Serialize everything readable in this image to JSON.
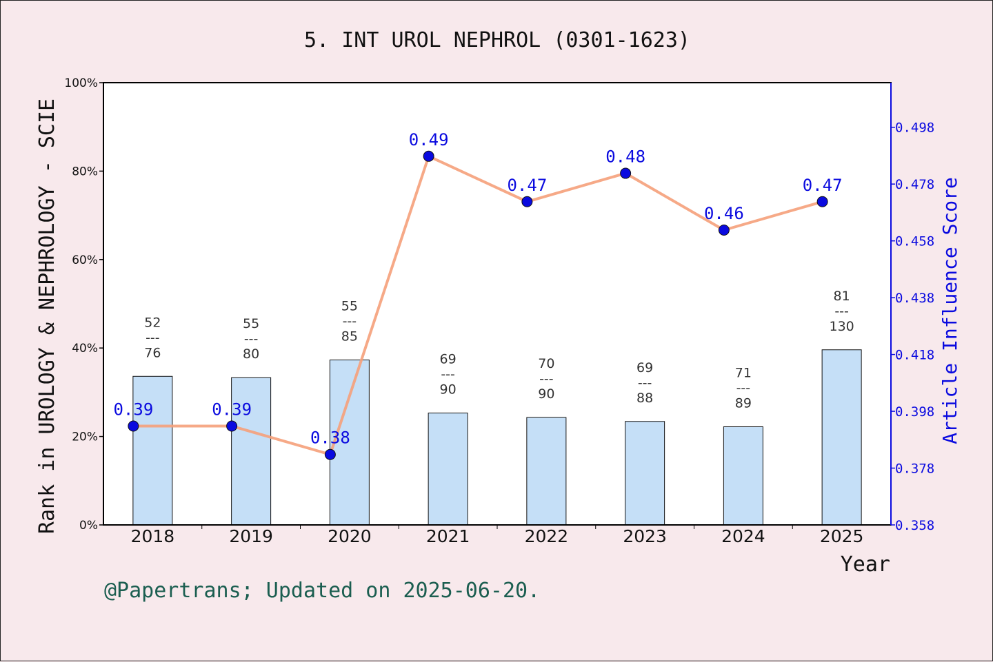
{
  "footer": "@Papertrans; Updated on 2025-06-20.",
  "chart_data": {
    "type": "bar",
    "title": "5. INT UROL NEPHROL (0301-1623)",
    "xlabel": "Year",
    "ylabel": "Rank in UROLOGY & NEPHROLOGY - SCIE",
    "y2label": "Article Influence Score",
    "categories": [
      "2018",
      "2019",
      "2020",
      "2021",
      "2022",
      "2023",
      "2024",
      "2025"
    ],
    "ylim": [
      0,
      100
    ],
    "yticks": [
      "0%",
      "20%",
      "40%",
      "60%",
      "80%",
      "100%"
    ],
    "y2lim": [
      0.358,
      0.5137
    ],
    "y2ticks": [
      "0.358",
      "0.378",
      "0.398",
      "0.418",
      "0.438",
      "0.458",
      "0.478",
      "0.498"
    ],
    "series": [
      {
        "kind": "bar",
        "values": [
          33.6,
          33.3,
          37.3,
          25.3,
          24.3,
          23.4,
          22.2,
          39.6
        ],
        "color": "#c5dff7",
        "labels": [
          {
            "rank": "52",
            "sep": "---",
            "total": "76"
          },
          {
            "rank": "55",
            "sep": "---",
            "total": "80"
          },
          {
            "rank": "55",
            "sep": "---",
            "total": "85"
          },
          {
            "rank": "69",
            "sep": "---",
            "total": "90"
          },
          {
            "rank": "70",
            "sep": "---",
            "total": "90"
          },
          {
            "rank": "69",
            "sep": "---",
            "total": "88"
          },
          {
            "rank": "71",
            "sep": "---",
            "total": "89"
          },
          {
            "rank": "81",
            "sep": "---",
            "total": "130"
          }
        ]
      },
      {
        "kind": "line",
        "axis": "right",
        "values": [
          0.3928,
          0.3928,
          0.3828,
          0.4878,
          0.4718,
          0.4818,
          0.4618,
          0.4718
        ],
        "labels": [
          "0.39",
          "0.39",
          "0.38",
          "0.49",
          "0.47",
          "0.48",
          "0.46",
          "0.47"
        ],
        "line_color": "#f5a07a",
        "marker_color": "#0a0adf"
      }
    ],
    "grid": false,
    "legend": "none"
  }
}
